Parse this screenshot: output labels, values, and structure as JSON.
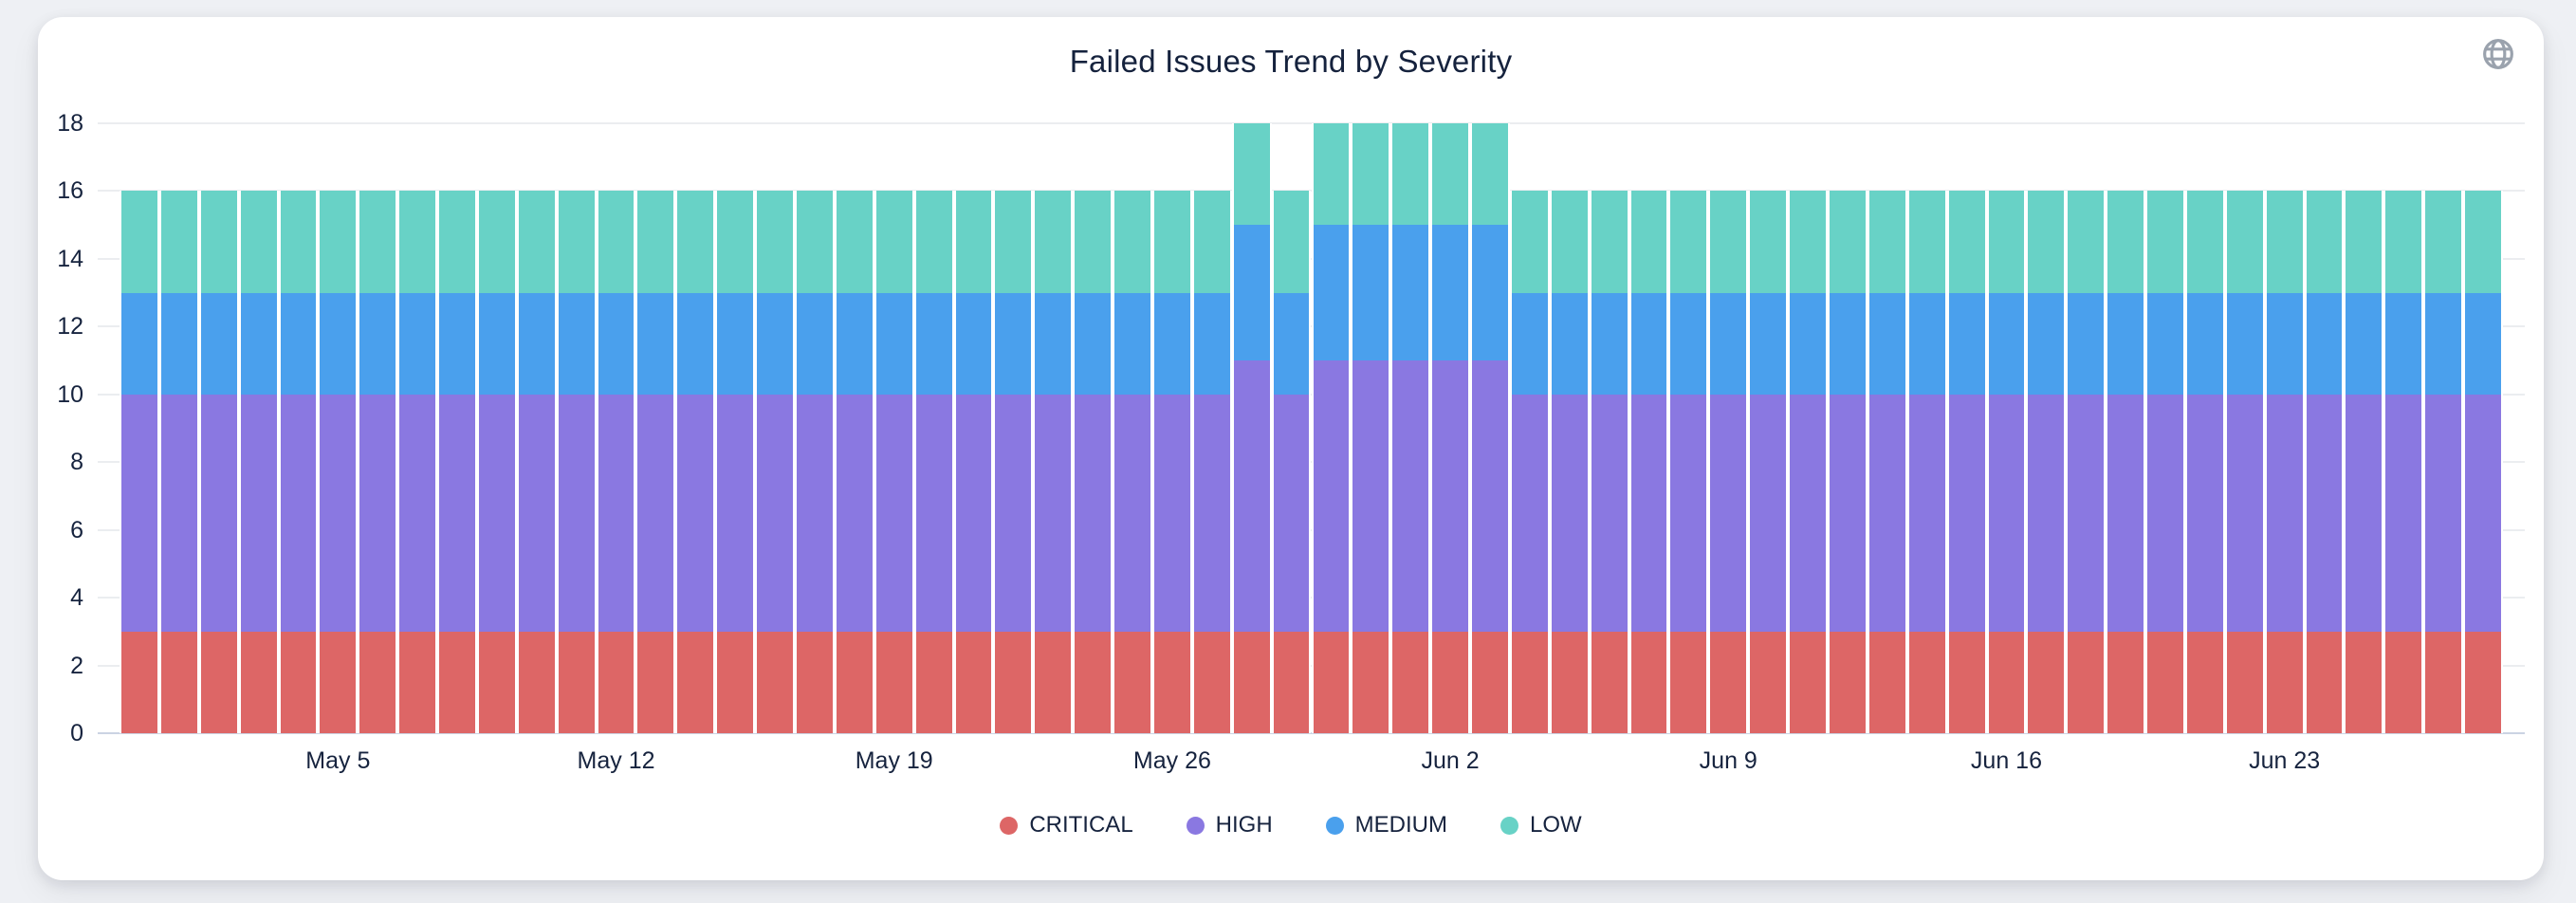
{
  "header": {
    "title": "Failed Issues Trend by Severity",
    "icon": "globe"
  },
  "chart_data": {
    "type": "bar",
    "stacked": true,
    "title": "Failed Issues Trend by Severity",
    "xlabel": "",
    "ylabel": "",
    "ylim": [
      0,
      18
    ],
    "y_ticks": [
      0,
      2,
      4,
      6,
      8,
      10,
      12,
      14,
      16,
      18
    ],
    "grid": "horizontal",
    "legend_position": "bottom",
    "x": [
      "Apr 30",
      "May 1",
      "May 2",
      "May 3",
      "May 4",
      "May 5",
      "May 6",
      "May 7",
      "May 8",
      "May 9",
      "May 10",
      "May 11",
      "May 12",
      "May 13",
      "May 14",
      "May 15",
      "May 16",
      "May 17",
      "May 18",
      "May 19",
      "May 20",
      "May 21",
      "May 22",
      "May 23",
      "May 24",
      "May 25",
      "May 26",
      "May 27",
      "May 28",
      "May 29",
      "May 30",
      "May 31",
      "Jun 1",
      "Jun 2",
      "Jun 3",
      "Jun 4",
      "Jun 5",
      "Jun 6",
      "Jun 7",
      "Jun 8",
      "Jun 9",
      "Jun 10",
      "Jun 11",
      "Jun 12",
      "Jun 13",
      "Jun 14",
      "Jun 15",
      "Jun 16",
      "Jun 17",
      "Jun 18",
      "Jun 19",
      "Jun 20",
      "Jun 21",
      "Jun 22",
      "Jun 23",
      "Jun 24",
      "Jun 25",
      "Jun 26",
      "Jun 27",
      "Jun 28"
    ],
    "x_tick_labels": [
      "May 5",
      "May 12",
      "May 19",
      "May 26",
      "Jun 2",
      "Jun 9",
      "Jun 16",
      "Jun 23"
    ],
    "x_tick_indices": [
      5,
      12,
      19,
      26,
      33,
      40,
      47,
      54
    ],
    "series": [
      {
        "name": "CRITICAL",
        "color": "#dd6666",
        "values": [
          3,
          3,
          3,
          3,
          3,
          3,
          3,
          3,
          3,
          3,
          3,
          3,
          3,
          3,
          3,
          3,
          3,
          3,
          3,
          3,
          3,
          3,
          3,
          3,
          3,
          3,
          3,
          3,
          3,
          3,
          3,
          3,
          3,
          3,
          3,
          3,
          3,
          3,
          3,
          3,
          3,
          3,
          3,
          3,
          3,
          3,
          3,
          3,
          3,
          3,
          3,
          3,
          3,
          3,
          3,
          3,
          3,
          3,
          3,
          3
        ]
      },
      {
        "name": "HIGH",
        "color": "#8a78e1",
        "values": [
          7,
          7,
          7,
          7,
          7,
          7,
          7,
          7,
          7,
          7,
          7,
          7,
          7,
          7,
          7,
          7,
          7,
          7,
          7,
          7,
          7,
          7,
          7,
          7,
          7,
          7,
          7,
          7,
          8,
          7,
          8,
          8,
          8,
          8,
          8,
          7,
          7,
          7,
          7,
          7,
          7,
          7,
          7,
          7,
          7,
          7,
          7,
          7,
          7,
          7,
          7,
          7,
          7,
          7,
          7,
          7,
          7,
          7,
          7,
          7
        ]
      },
      {
        "name": "MEDIUM",
        "color": "#4aa0ed",
        "values": [
          3,
          3,
          3,
          3,
          3,
          3,
          3,
          3,
          3,
          3,
          3,
          3,
          3,
          3,
          3,
          3,
          3,
          3,
          3,
          3,
          3,
          3,
          3,
          3,
          3,
          3,
          3,
          3,
          4,
          3,
          4,
          4,
          4,
          4,
          4,
          3,
          3,
          3,
          3,
          3,
          3,
          3,
          3,
          3,
          3,
          3,
          3,
          3,
          3,
          3,
          3,
          3,
          3,
          3,
          3,
          3,
          3,
          3,
          3,
          3
        ]
      },
      {
        "name": "LOW",
        "color": "#68d2c6",
        "values": [
          3,
          3,
          3,
          3,
          3,
          3,
          3,
          3,
          3,
          3,
          3,
          3,
          3,
          3,
          3,
          3,
          3,
          3,
          3,
          3,
          3,
          3,
          3,
          3,
          3,
          3,
          3,
          3,
          3,
          3,
          3,
          3,
          3,
          3,
          3,
          3,
          3,
          3,
          3,
          3,
          3,
          3,
          3,
          3,
          3,
          3,
          3,
          3,
          3,
          3,
          3,
          3,
          3,
          3,
          3,
          3,
          3,
          3,
          3,
          3
        ]
      }
    ]
  }
}
